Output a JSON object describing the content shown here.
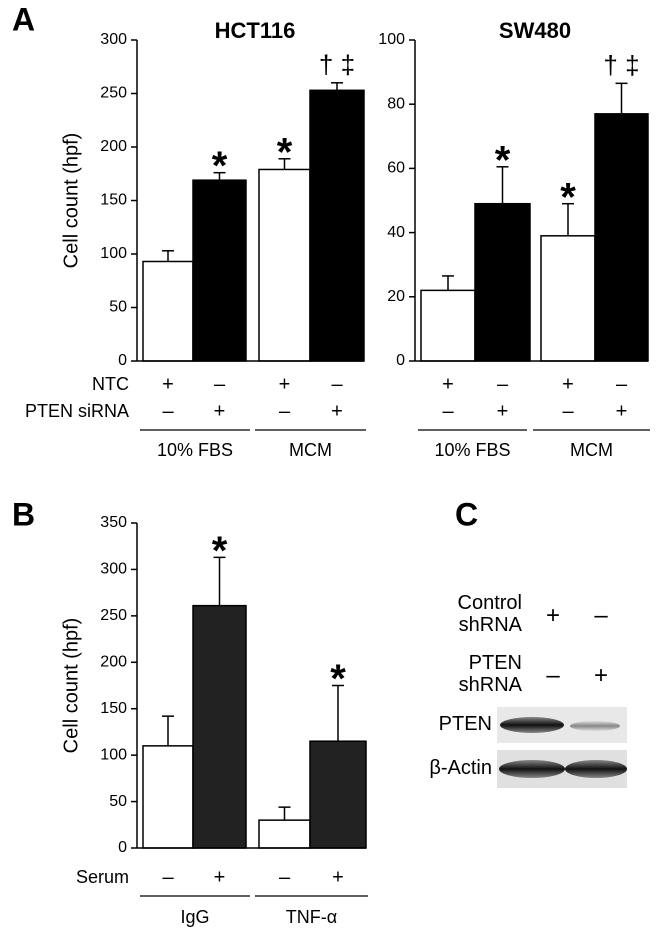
{
  "panel_labels": [
    "A",
    "B",
    "C"
  ],
  "chart_data": [
    {
      "type": "bar",
      "title": "HCT116",
      "ylabel": "Cell count (hpf)",
      "values": [
        93,
        169,
        179,
        253
      ],
      "errors": [
        10,
        7,
        10,
        7
      ],
      "colors": [
        "#ffffff",
        "#000000",
        "#ffffff",
        "#000000"
      ],
      "annotations": [
        null,
        "*",
        "*",
        "† ‡"
      ],
      "ylim": [
        0,
        300
      ],
      "yticks": [
        0,
        50,
        100,
        150,
        200,
        250,
        300
      ],
      "conditions": [
        {
          "label": "NTC",
          "signs": [
            "+",
            "–",
            "+",
            "–"
          ]
        },
        {
          "label": "PTEN siRNA",
          "signs": [
            "–",
            "+",
            "–",
            "+"
          ]
        }
      ],
      "groups": [
        "10% FBS",
        "MCM"
      ]
    },
    {
      "type": "bar",
      "title": "SW480",
      "values": [
        22,
        49,
        39,
        77
      ],
      "errors": [
        4.5,
        11.5,
        10,
        9.5
      ],
      "colors": [
        "#ffffff",
        "#000000",
        "#ffffff",
        "#000000"
      ],
      "annotations": [
        null,
        "*",
        "*",
        "† ‡"
      ],
      "ylim": [
        0,
        100
      ],
      "yticks": [
        0,
        20,
        40,
        60,
        80,
        100
      ],
      "conditions": [
        {
          "signs": [
            "+",
            "–",
            "+",
            "–"
          ]
        },
        {
          "signs": [
            "–",
            "+",
            "–",
            "+"
          ]
        }
      ],
      "groups": [
        "10% FBS",
        "MCM"
      ]
    },
    {
      "type": "bar",
      "ylabel": "Cell count (hpf)",
      "values": [
        110,
        261,
        30,
        115
      ],
      "errors": [
        32,
        52,
        14,
        60
      ],
      "colors": [
        "#ffffff",
        "#222222",
        "#ffffff",
        "#222222"
      ],
      "annotations": [
        null,
        "*",
        null,
        "*"
      ],
      "ylim": [
        0,
        350
      ],
      "yticks": [
        0,
        50,
        100,
        150,
        200,
        250,
        300,
        350
      ],
      "conditions": [
        {
          "label": "Serum",
          "signs": [
            "–",
            "+",
            "–",
            "+"
          ]
        }
      ],
      "groups": [
        "IgG",
        "TNF-α"
      ]
    }
  ],
  "blot": {
    "treatments": [
      {
        "label": "Control shRNA",
        "signs": [
          "+",
          "–"
        ]
      },
      {
        "label": "PTEN shRNA",
        "signs": [
          "–",
          "+"
        ]
      }
    ],
    "bands": [
      "PTEN",
      "β-Actin"
    ]
  }
}
